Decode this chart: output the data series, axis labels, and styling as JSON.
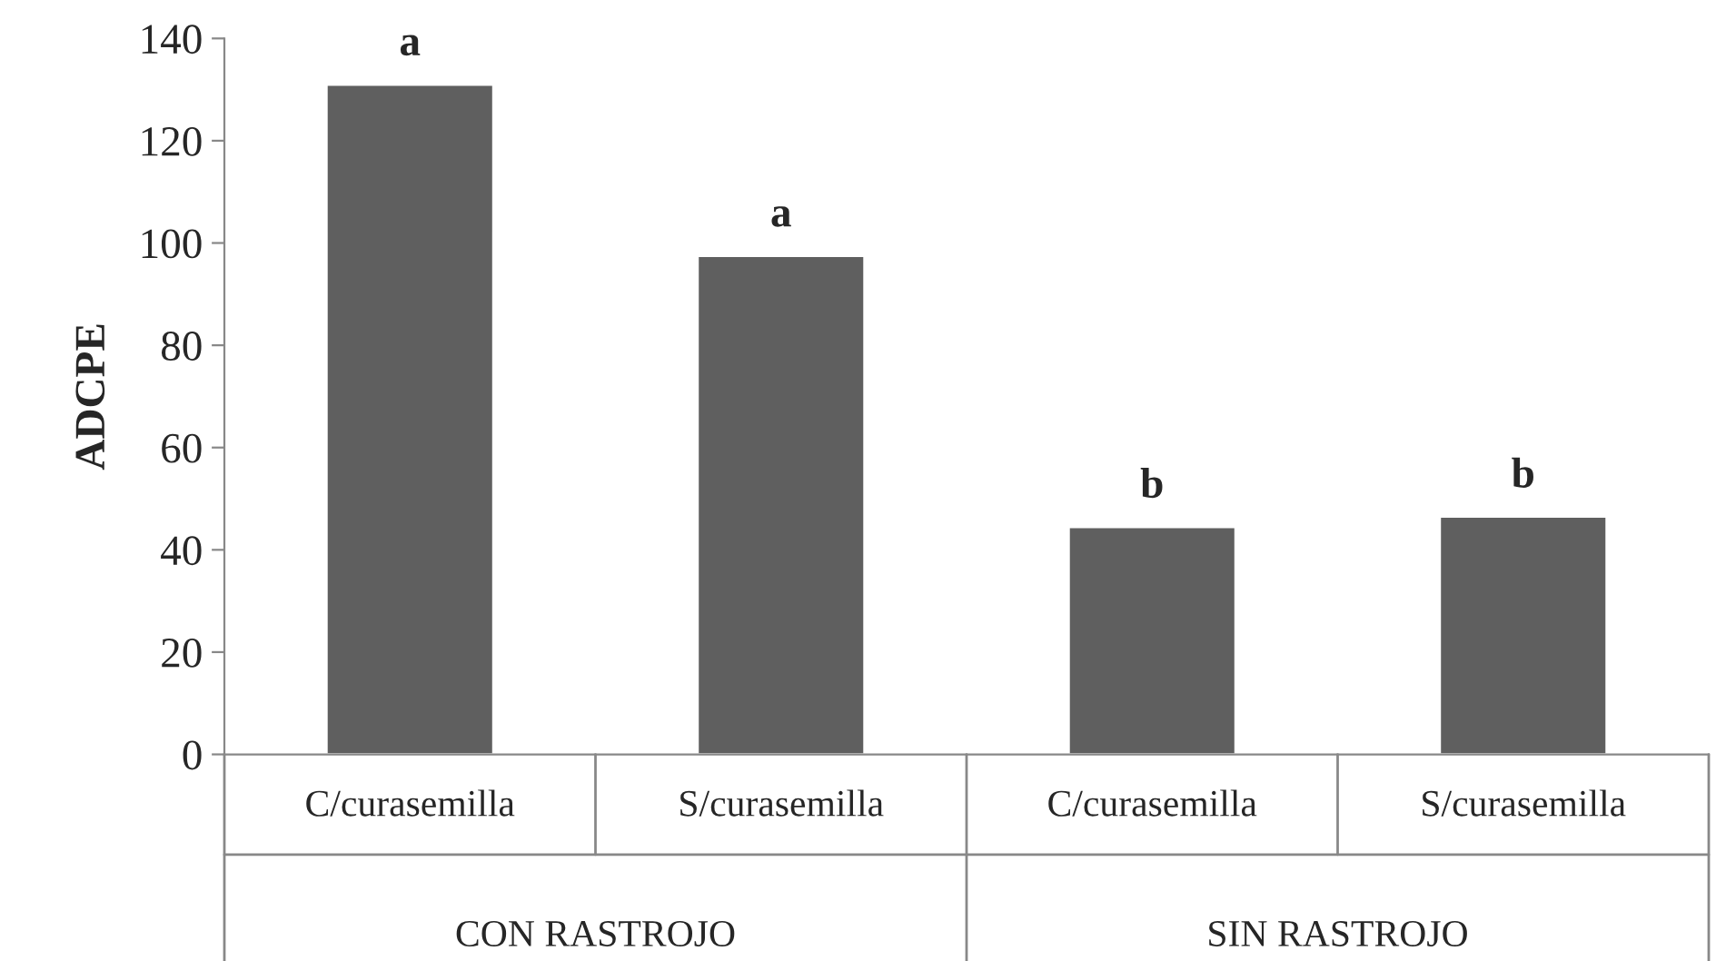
{
  "chart_data": {
    "type": "bar",
    "ylabel": "ADCPE",
    "categories": [
      "C/curasemilla",
      "S/curasemilla",
      "C/curasemilla",
      "S/curasemilla"
    ],
    "values": [
      131,
      97.5,
      44.5,
      46.5
    ],
    "value_labels": [
      "a",
      "a",
      "b",
      "b"
    ],
    "color": "#5f5f5f",
    "ylim": [
      0,
      140
    ],
    "yticks": [
      0,
      20,
      40,
      60,
      80,
      100,
      120,
      140
    ],
    "annotations": [
      "CON RASTROJO",
      "SIN RASTROJO"
    ],
    "grid": false,
    "legend": false
  }
}
